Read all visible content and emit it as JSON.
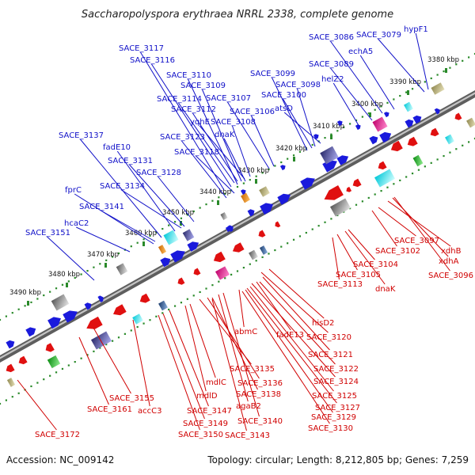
{
  "title": "Saccharopolyspora erythraea NRRL 2338, complete genome",
  "accession": "Accession: NC_009142",
  "summary": "Topology: circular; Length: 8,212,805 bp; Genes: 7,259",
  "colors": {
    "forward_gene": "#1a1adc",
    "reverse_gene": "#e01010",
    "forward_label": "#1010c8",
    "reverse_label": "#d00000",
    "backbone": "#8a8a8a",
    "ruler_dots": "#2a8a2a"
  },
  "ruler_ticks": [
    "3380 kbp",
    "3390 kbp",
    "3400 kbp",
    "3410 kbp",
    "3420 kbp",
    "3430 kbp",
    "3440 kbp",
    "3450 kbp",
    "3460 kbp",
    "3470 kbp",
    "3480 kbp",
    "3490 kbp"
  ],
  "forward_labels": [
    "SACE_3117",
    "SACE_3116",
    "SACE_3110",
    "SACE_3109",
    "SACE_3114",
    "SACE_3112",
    "yqhE",
    "SACE_3108",
    "SACE_3107",
    "SACE_3106",
    "dnaK",
    "SACE_3099",
    "SACE_3098",
    "SACE_3100",
    "atsD",
    "SACE_3086",
    "SACE_3079",
    "hypF1",
    "echA5",
    "SACE_3089",
    "helZ2",
    "SACE_3137",
    "fadE10",
    "SACE_3123",
    "SACE_3118",
    "SACE_3131",
    "SACE_3128",
    "SACE_3134",
    "fprC",
    "SACE_3141",
    "hcaC2",
    "SACE_3151"
  ],
  "reverse_labels": [
    "SACE_3097",
    "xdhB",
    "SACE_3102",
    "xdhA",
    "SACE_3096",
    "SACE_3104",
    "SACE_3105",
    "SACE_3113",
    "dnaK",
    "hisD2",
    "SACE_3120",
    "abmC",
    "fadE13",
    "SACE_3121",
    "SACE_3122",
    "SACE_3124",
    "SACE_3135",
    "SACE_3136",
    "mdlC",
    "SACE_3138",
    "SACE_3125",
    "SACE_3127",
    "SACE_3129",
    "mdlD",
    "agaB2",
    "SACE_3130",
    "SACE_3155",
    "SACE_3147",
    "SACE_3140",
    "SACE_3161",
    "accC3",
    "SACE_3149",
    "SACE_3150",
    "SACE_3143",
    "SACE_3172"
  ]
}
